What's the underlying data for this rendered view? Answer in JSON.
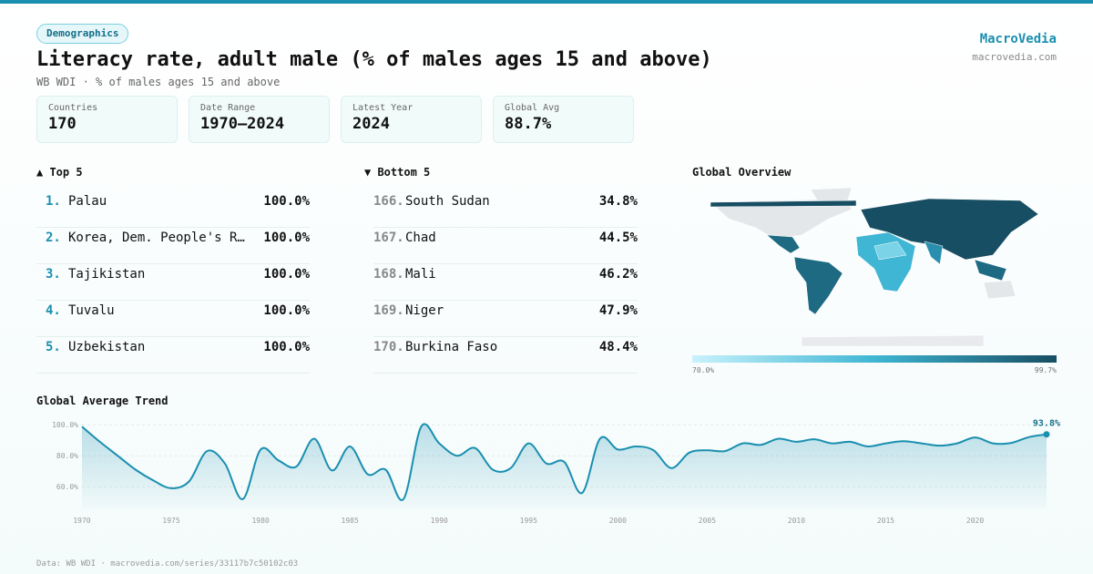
{
  "header": {
    "badge": "Demographics",
    "title": "Literacy rate, adult male (% of males ages 15 and above)",
    "subtitle": "WB WDI · % of males ages 15 and above",
    "brand": "MacroVedia",
    "brand_url": "macrovedia.com"
  },
  "stats": [
    {
      "label": "Countries",
      "value": 170
    },
    {
      "label": "Date Range",
      "value": "1970–2024"
    },
    {
      "label": "Latest Year",
      "value": 2024
    },
    {
      "label": "Global Avg",
      "value": "88.7%"
    }
  ],
  "top": {
    "title": "▲ Top 5",
    "rows": [
      {
        "rank": "1.",
        "name": "Palau",
        "value": "100.0%"
      },
      {
        "rank": "2.",
        "name": "Korea, Dem. People's R…",
        "value": "100.0%"
      },
      {
        "rank": "3.",
        "name": "Tajikistan",
        "value": "100.0%"
      },
      {
        "rank": "4.",
        "name": "Tuvalu",
        "value": "100.0%"
      },
      {
        "rank": "5.",
        "name": "Uzbekistan",
        "value": "100.0%"
      }
    ]
  },
  "bottom": {
    "title": "▼ Bottom 5",
    "rows": [
      {
        "rank": "166.",
        "name": "South Sudan",
        "value": "34.8%"
      },
      {
        "rank": "167.",
        "name": "Chad",
        "value": "44.5%"
      },
      {
        "rank": "168.",
        "name": "Mali",
        "value": "46.2%"
      },
      {
        "rank": "169.",
        "name": "Niger",
        "value": "47.9%"
      },
      {
        "rank": "170.",
        "name": "Burkina Faso",
        "value": "48.4%"
      }
    ]
  },
  "map": {
    "title": "Global Overview",
    "legend_min": "70.0%",
    "legend_max": "99.7%"
  },
  "chart_data": {
    "type": "line",
    "title": "Global Average Trend",
    "x": [
      1970,
      1971,
      1972,
      1973,
      1974,
      1975,
      1976,
      1977,
      1978,
      1979,
      1980,
      1981,
      1982,
      1983,
      1984,
      1985,
      1986,
      1987,
      1988,
      1989,
      1990,
      1991,
      1992,
      1993,
      1994,
      1995,
      1996,
      1997,
      1998,
      1999,
      2000,
      2001,
      2002,
      2003,
      2004,
      2005,
      2006,
      2007,
      2008,
      2009,
      2010,
      2011,
      2012,
      2013,
      2014,
      2015,
      2016,
      2017,
      2018,
      2019,
      2020,
      2021,
      2022,
      2023,
      2024
    ],
    "values": [
      98.8,
      89,
      80,
      71,
      64,
      59,
      63.5,
      83,
      75,
      52,
      84,
      77,
      73,
      91,
      70.5,
      86,
      68,
      71,
      52,
      99,
      88,
      80,
      85,
      71,
      72,
      88,
      75,
      76,
      56,
      91,
      84,
      86,
      83.5,
      72,
      82,
      83.5,
      83,
      88,
      87,
      91,
      89,
      90.6,
      88,
      89,
      86,
      88,
      89.4,
      88,
      86.5,
      88,
      91.8,
      88,
      88.2,
      92,
      93.8
    ],
    "value_labels": [
      null,
      null,
      null,
      null,
      null,
      null,
      null,
      null,
      null,
      null,
      null,
      null,
      null,
      null,
      null,
      null,
      null,
      null,
      null,
      null,
      null,
      null,
      null,
      null,
      null,
      null,
      null,
      null,
      null,
      null,
      null,
      null,
      null,
      null,
      null,
      null,
      null,
      null,
      null,
      null,
      null,
      null,
      null,
      null,
      null,
      null,
      null,
      null,
      null,
      null,
      null,
      null,
      null,
      null,
      "93.8%"
    ],
    "color": "#1a8fb0",
    "xlim": [
      1970,
      2024
    ],
    "xticks": [
      1970,
      1975,
      1980,
      1985,
      1990,
      1995,
      2000,
      2005,
      2010,
      2015,
      2020
    ],
    "ylim": [
      46,
      104
    ],
    "yticks": [
      {
        "value": 100,
        "label": "100.0%"
      },
      {
        "value": 80,
        "label": "80.0%"
      },
      {
        "value": 60,
        "label": "60.0%"
      }
    ],
    "grid": true
  },
  "footer": "Data: WB WDI · macrovedia.com/series/33117b7c50102c03"
}
